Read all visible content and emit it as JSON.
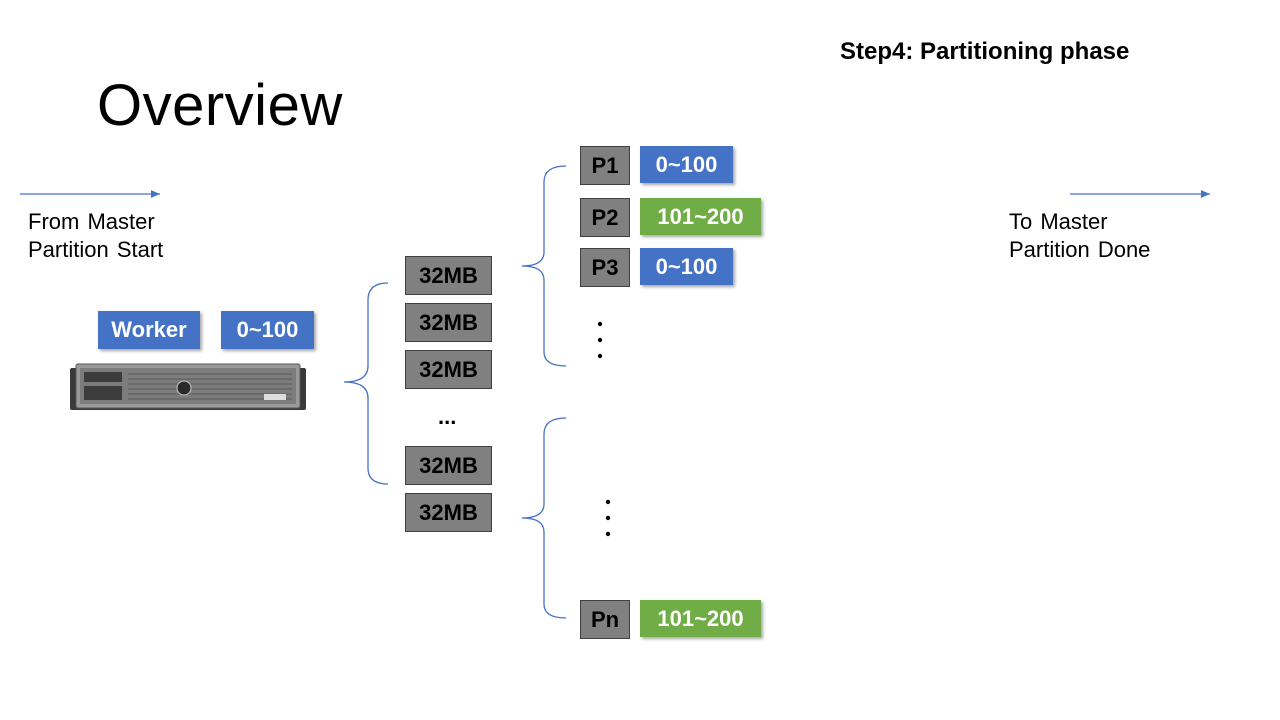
{
  "slide": {
    "title": "Overview",
    "step_label": "Step4: Partitioning phase"
  },
  "left_caption": {
    "line1": "From Master",
    "line2": "Partition Start"
  },
  "right_caption": {
    "line1": "To Master",
    "line2": "Partition Done"
  },
  "worker": {
    "label": "Worker",
    "range": "0~100"
  },
  "chunks": {
    "label": "32MB",
    "ellipsis": "..."
  },
  "partitions": [
    {
      "id": "P1",
      "range": "0~100",
      "color": "#4472c4"
    },
    {
      "id": "P2",
      "range": "101~200",
      "color": "#70ad47"
    },
    {
      "id": "P3",
      "range": "0~100",
      "color": "#4472c4"
    },
    {
      "id": "Pn",
      "range": "101~200",
      "color": "#70ad47"
    }
  ],
  "colors": {
    "grey_box": "#808080",
    "blue_box": "#4472c4",
    "green_box": "#70ad47",
    "arrow": "#4472c4"
  },
  "icons": {
    "server": "server-rack-icon"
  }
}
